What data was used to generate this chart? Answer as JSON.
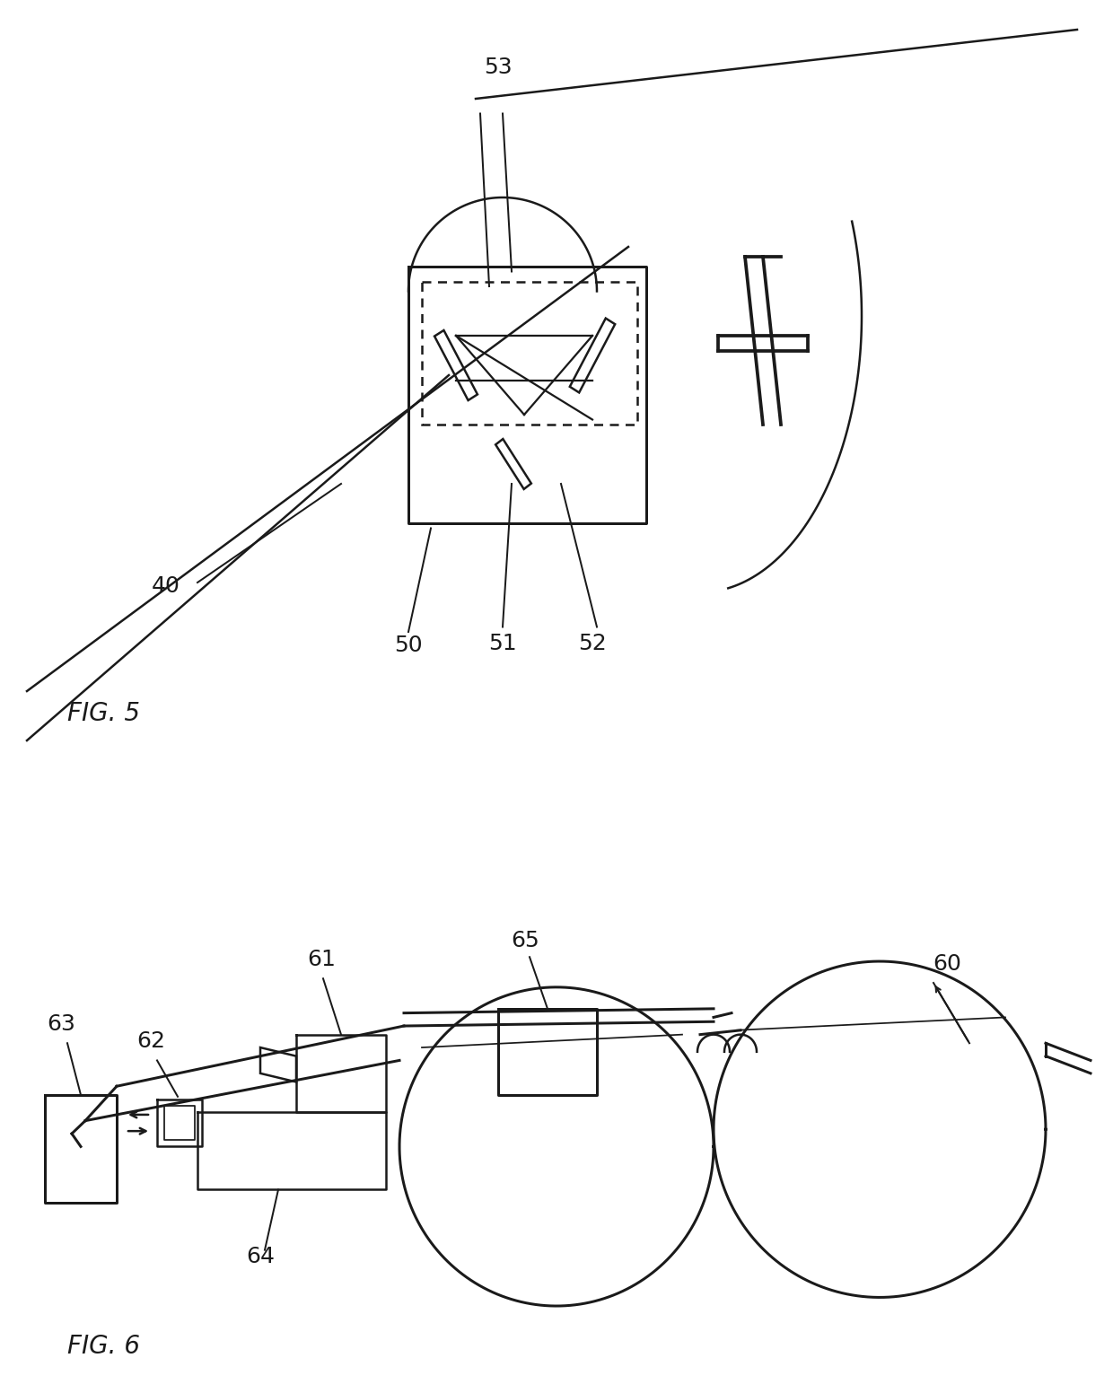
{
  "background_color": "#ffffff",
  "line_color": "#1a1a1a",
  "lw": 1.8
}
